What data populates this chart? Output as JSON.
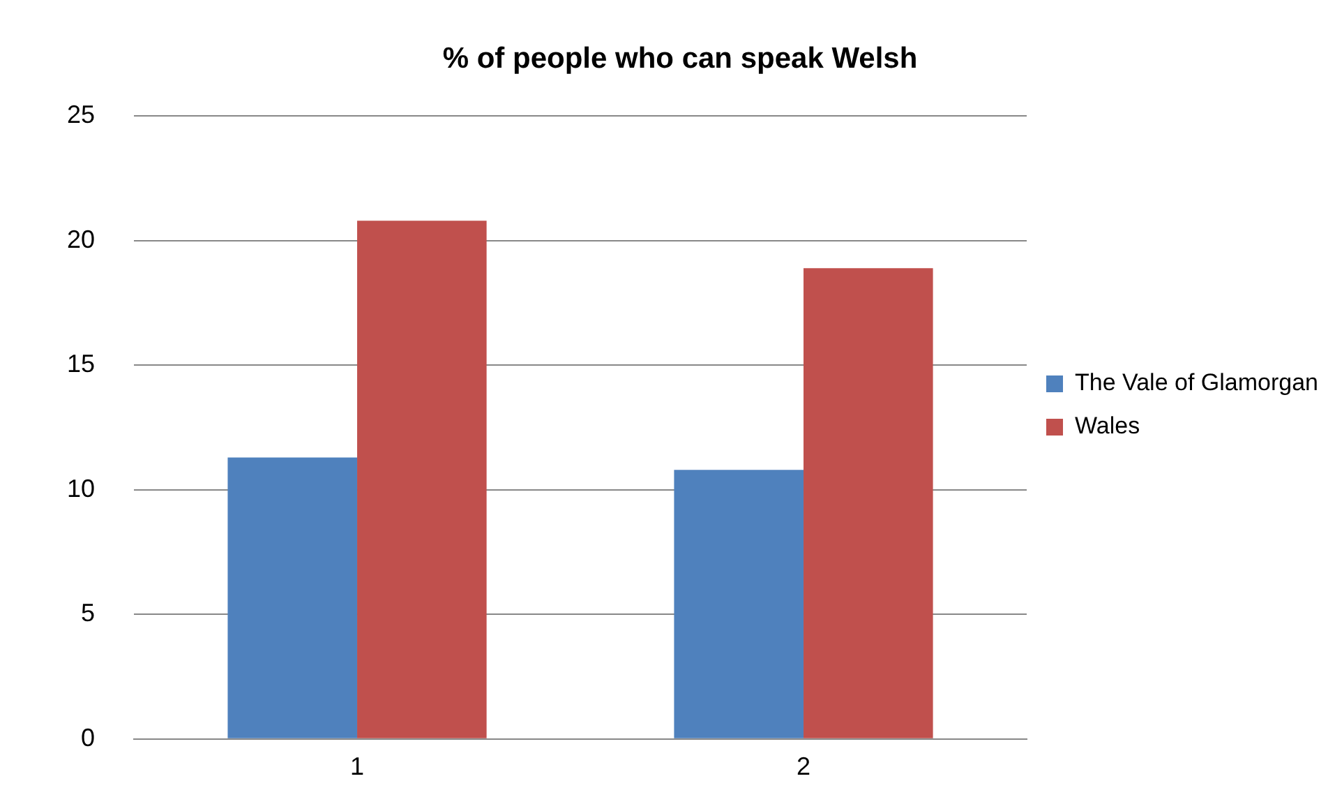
{
  "chart_data": {
    "type": "bar",
    "title": "% of people who can speak Welsh",
    "categories": [
      "1",
      "2"
    ],
    "series": [
      {
        "name": "The Vale of Glamorgan",
        "color": "#4f81bd",
        "values": [
          11.3,
          10.8
        ]
      },
      {
        "name": "Wales",
        "color": "#c0504d",
        "values": [
          20.8,
          18.9
        ]
      }
    ],
    "ylim": [
      0,
      25
    ],
    "yticks": [
      0,
      5,
      10,
      15,
      20,
      25
    ],
    "grid": "y",
    "legend": "right"
  }
}
